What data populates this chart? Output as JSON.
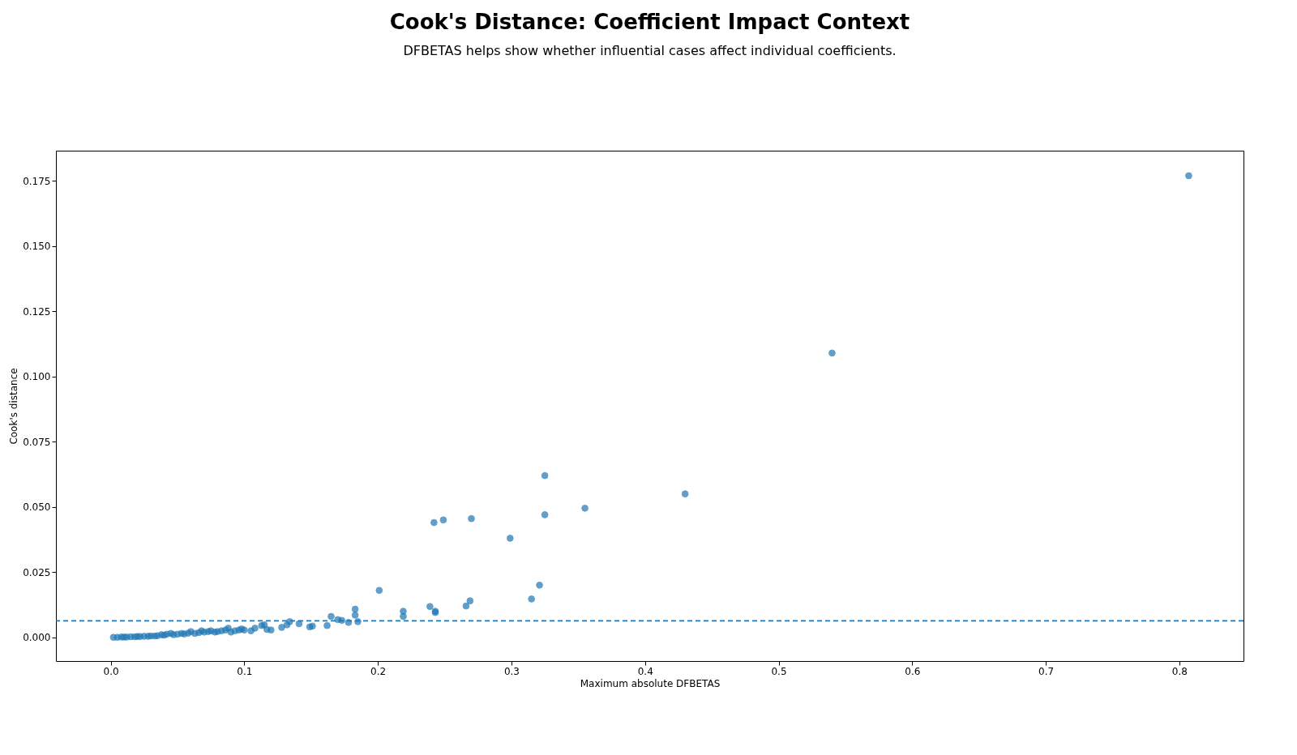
{
  "chart_data": {
    "type": "scatter",
    "title": "Cook's Distance: Coefficient Impact Context",
    "subtitle": "DFBETAS helps show whether influential cases affect individual coefficients.",
    "xlabel": "Maximum absolute DFBETAS",
    "ylabel": "Cook's distance",
    "series": [
      {
        "color": "#1f77b4",
        "x": [
          0.002,
          0.005,
          0.008,
          0.01,
          0.012,
          0.015,
          0.018,
          0.02,
          0.022,
          0.025,
          0.028,
          0.03,
          0.033,
          0.035,
          0.038,
          0.04,
          0.042,
          0.045,
          0.047,
          0.05,
          0.053,
          0.055,
          0.058,
          0.06,
          0.063,
          0.066,
          0.068,
          0.07,
          0.073,
          0.075,
          0.078,
          0.08,
          0.083,
          0.086,
          0.088,
          0.09,
          0.093,
          0.096,
          0.098,
          0.1,
          0.105,
          0.108,
          0.113,
          0.115,
          0.117,
          0.12,
          0.128,
          0.132,
          0.134,
          0.141,
          0.149,
          0.151,
          0.162,
          0.165,
          0.17,
          0.173,
          0.178,
          0.183,
          0.183,
          0.185,
          0.201,
          0.219,
          0.219,
          0.239,
          0.242,
          0.243,
          0.243,
          0.249,
          0.266,
          0.269,
          0.27,
          0.299,
          0.315,
          0.321,
          0.325,
          0.325,
          0.355,
          0.43,
          0.54,
          0.807
        ],
        "values": [
          0.0,
          0.0,
          0.0001,
          0.0001,
          0.0001,
          0.0002,
          0.0002,
          0.0003,
          0.0003,
          0.0004,
          0.0004,
          0.0005,
          0.0005,
          0.0006,
          0.001,
          0.0008,
          0.0012,
          0.0015,
          0.001,
          0.0012,
          0.0015,
          0.0013,
          0.0016,
          0.0022,
          0.0015,
          0.0018,
          0.0025,
          0.002,
          0.0022,
          0.0025,
          0.002,
          0.0022,
          0.0025,
          0.0028,
          0.0035,
          0.002,
          0.0025,
          0.0028,
          0.0032,
          0.0028,
          0.0025,
          0.0035,
          0.0045,
          0.0048,
          0.003,
          0.0028,
          0.0038,
          0.0048,
          0.006,
          0.0052,
          0.004,
          0.0043,
          0.0045,
          0.008,
          0.0068,
          0.0065,
          0.0057,
          0.0108,
          0.0085,
          0.006,
          0.018,
          0.01,
          0.008,
          0.0118,
          0.044,
          0.01,
          0.0095,
          0.045,
          0.012,
          0.014,
          0.0455,
          0.038,
          0.0147,
          0.02,
          0.062,
          0.047,
          0.0495,
          0.055,
          0.109,
          0.177
        ]
      }
    ],
    "marker": "circle",
    "xlim": [
      -0.041,
      0.848
    ],
    "xticks": [
      {
        "value": 0,
        "label": "0.0"
      },
      0.1,
      0.2,
      0.3,
      0.4,
      0.5,
      0.6,
      0.7,
      0.8
    ],
    "ylim": [
      -0.0091,
      0.1866
    ],
    "yticks": [
      {
        "value": 0,
        "label": "0.000"
      },
      {
        "value": 0.025,
        "label": "0.025"
      },
      {
        "value": 0.05,
        "label": "0.050"
      },
      {
        "value": 0.075,
        "label": "0.075"
      },
      {
        "value": 0.1,
        "label": "0.100"
      },
      0.125,
      {
        "value": 0.15,
        "label": "0.150"
      },
      0.175
    ],
    "ref_lines": [
      {
        "axis": "y",
        "value": 0.0063,
        "color": "#1f77b4",
        "line_style": "dashed"
      }
    ],
    "grid": false
  }
}
